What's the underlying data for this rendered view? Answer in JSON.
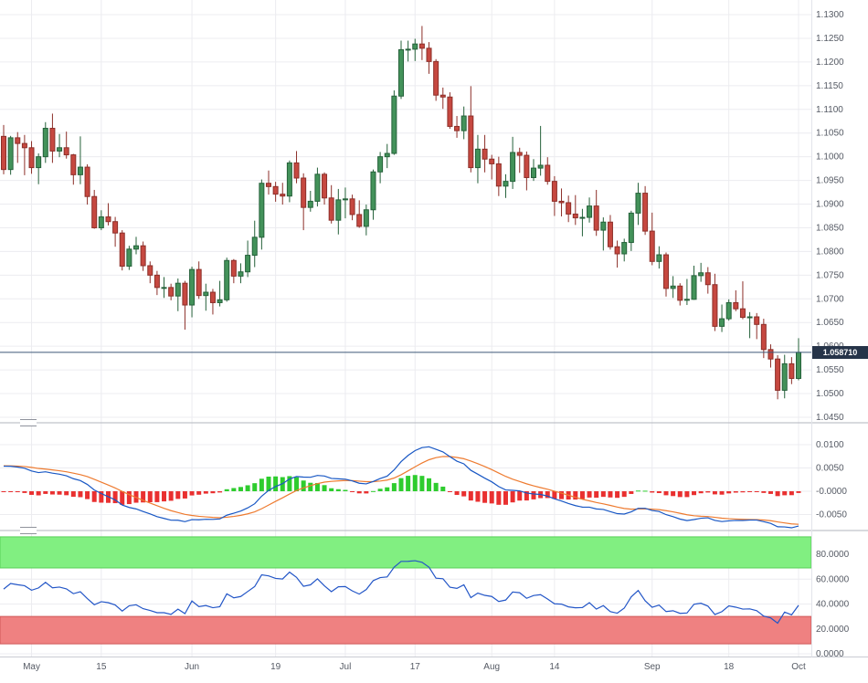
{
  "price_axis": {
    "last_price_label": "1.058710",
    "badge_color": "#263449",
    "line_color": "#3d5878"
  },
  "time_axis": {
    "ticks": [
      {
        "label": "May",
        "index": 4
      },
      {
        "label": "15",
        "index": 14
      },
      {
        "label": "Jun",
        "index": 27
      },
      {
        "label": "19",
        "index": 39
      },
      {
        "label": "Jul",
        "index": 49
      },
      {
        "label": "17",
        "index": 59
      },
      {
        "label": "Aug",
        "index": 70
      },
      {
        "label": "14",
        "index": 79
      },
      {
        "label": "Sep",
        "index": 93
      },
      {
        "label": "18",
        "index": 104
      },
      {
        "label": "Oct",
        "index": 114
      }
    ]
  },
  "chart_data": [
    {
      "type": "candlestick",
      "name": "price",
      "ylim": [
        1.045,
        1.13
      ],
      "last_price": 1.05871,
      "last_price_label": "1.058710",
      "up_color": "#43925a",
      "up_border": "#25613a",
      "down_color": "#c64840",
      "down_border": "#8c2f29",
      "y_ticks": [
        {
          "label": "1.1300",
          "value": 1.13
        },
        {
          "label": "1.1250",
          "value": 1.125
        },
        {
          "label": "1.1200",
          "value": 1.12
        },
        {
          "label": "1.1150",
          "value": 1.115
        },
        {
          "label": "1.1100",
          "value": 1.11
        },
        {
          "label": "1.1050",
          "value": 1.105
        },
        {
          "label": "1.1000",
          "value": 1.1
        },
        {
          "label": "1.0950",
          "value": 1.095
        },
        {
          "label": "1.0900",
          "value": 1.09
        },
        {
          "label": "1.0850",
          "value": 1.085
        },
        {
          "label": "1.0800",
          "value": 1.08
        },
        {
          "label": "1.0750",
          "value": 1.075
        },
        {
          "label": "1.0700",
          "value": 1.07
        },
        {
          "label": "1.0650",
          "value": 1.065
        },
        {
          "label": "1.0600",
          "value": 1.06
        },
        {
          "label": "1.0550",
          "value": 1.055
        },
        {
          "label": "1.0500",
          "value": 1.05
        },
        {
          "label": "1.0450",
          "value": 1.045
        }
      ],
      "ohlc": [
        [
          1.1043,
          1.1067,
          1.0963,
          1.0973
        ],
        [
          1.0973,
          1.1044,
          1.0962,
          1.104
        ],
        [
          1.104,
          1.1052,
          1.0987,
          1.1028
        ],
        [
          1.1028,
          1.1046,
          1.0961,
          1.1019
        ],
        [
          1.1019,
          1.1033,
          1.0964,
          1.0977
        ],
        [
          1.0977,
          1.1007,
          1.0942,
          1.1
        ],
        [
          1.1,
          1.1073,
          1.0987,
          1.106
        ],
        [
          1.106,
          1.1091,
          1.0987,
          1.1012
        ],
        [
          1.1012,
          1.1048,
          1.0999,
          1.1019
        ],
        [
          1.1019,
          1.1053,
          1.0996,
          1.1004
        ],
        [
          1.1004,
          1.1006,
          1.0941,
          1.0962
        ],
        [
          1.0962,
          1.1043,
          1.0942,
          1.0978
        ],
        [
          1.0978,
          1.0984,
          1.0899,
          1.0916
        ],
        [
          1.0916,
          1.093,
          1.0848,
          1.085
        ],
        [
          1.085,
          1.0887,
          1.0845,
          1.0873
        ],
        [
          1.0873,
          1.0902,
          1.0855,
          1.0863
        ],
        [
          1.0863,
          1.0873,
          1.081,
          1.0839
        ],
        [
          1.0839,
          1.0845,
          1.076,
          1.0769
        ],
        [
          1.0769,
          1.0812,
          1.0761,
          1.0805
        ],
        [
          1.0805,
          1.0831,
          1.0794,
          1.0812
        ],
        [
          1.0812,
          1.0821,
          1.0759,
          1.077
        ],
        [
          1.077,
          1.0779,
          1.0733,
          1.075
        ],
        [
          1.075,
          1.0759,
          1.0708,
          1.0724
        ],
        [
          1.0724,
          1.0746,
          1.0702,
          1.0724
        ],
        [
          1.0724,
          1.0732,
          1.0697,
          1.0706
        ],
        [
          1.0706,
          1.0743,
          1.0674,
          1.0733
        ],
        [
          1.0733,
          1.0738,
          1.0635,
          1.0687
        ],
        [
          1.0687,
          1.0768,
          1.0661,
          1.0762
        ],
        [
          1.0762,
          1.0779,
          1.07,
          1.0707
        ],
        [
          1.0707,
          1.0732,
          1.0675,
          1.0714
        ],
        [
          1.0714,
          1.0721,
          1.0667,
          1.0692
        ],
        [
          1.0692,
          1.0738,
          1.0684,
          1.0698
        ],
        [
          1.0698,
          1.0787,
          1.0694,
          1.0781
        ],
        [
          1.0781,
          1.0784,
          1.0733,
          1.0748
        ],
        [
          1.0748,
          1.0775,
          1.0733,
          1.0757
        ],
        [
          1.0757,
          1.0823,
          1.0746,
          1.0792
        ],
        [
          1.0792,
          1.0865,
          1.0767,
          1.083
        ],
        [
          1.083,
          1.0952,
          1.0804,
          1.0944
        ],
        [
          1.0944,
          1.0971,
          1.092,
          1.0937
        ],
        [
          1.0937,
          1.0947,
          1.0905,
          1.0921
        ],
        [
          1.0921,
          1.0945,
          1.0899,
          1.0917
        ],
        [
          1.0917,
          1.0992,
          1.0904,
          1.0987
        ],
        [
          1.0987,
          1.1012,
          1.0944,
          1.0955
        ],
        [
          1.0955,
          1.0965,
          1.0845,
          1.0893
        ],
        [
          1.0893,
          1.0928,
          1.0884,
          1.0906
        ],
        [
          1.0906,
          1.0977,
          1.0895,
          1.0963
        ],
        [
          1.0963,
          1.0967,
          1.0899,
          1.0913
        ],
        [
          1.0913,
          1.094,
          1.0859,
          1.0866
        ],
        [
          1.0866,
          1.0932,
          1.0836,
          1.0909
        ],
        [
          1.0909,
          1.0935,
          1.087,
          1.0911
        ],
        [
          1.0911,
          1.092,
          1.0866,
          1.0878
        ],
        [
          1.0878,
          1.0908,
          1.085,
          1.0853
        ],
        [
          1.0853,
          1.0899,
          1.0834,
          1.0888
        ],
        [
          1.0888,
          1.0973,
          1.0867,
          1.0968
        ],
        [
          1.0968,
          1.101,
          1.0944,
          1.1
        ],
        [
          1.1,
          1.1027,
          1.0976,
          1.1007
        ],
        [
          1.1007,
          1.114,
          1.1004,
          1.1128
        ],
        [
          1.1128,
          1.1245,
          1.1122,
          1.1226
        ],
        [
          1.1226,
          1.1245,
          1.1201,
          1.1227
        ],
        [
          1.1227,
          1.1249,
          1.1202,
          1.1238
        ],
        [
          1.1238,
          1.1276,
          1.1204,
          1.1229
        ],
        [
          1.1229,
          1.1242,
          1.1175,
          1.1201
        ],
        [
          1.1201,
          1.1206,
          1.1118,
          1.113
        ],
        [
          1.113,
          1.1146,
          1.1101,
          1.1126
        ],
        [
          1.1126,
          1.1136,
          1.1059,
          1.1064
        ],
        [
          1.1064,
          1.1086,
          1.104,
          1.1055
        ],
        [
          1.1055,
          1.1106,
          1.1037,
          1.1086
        ],
        [
          1.1086,
          1.1149,
          1.0967,
          1.0977
        ],
        [
          1.0977,
          1.1046,
          1.0944,
          1.1016
        ],
        [
          1.1016,
          1.1046,
          1.0967,
          1.0995
        ],
        [
          1.0995,
          1.1004,
          1.0952,
          1.0985
        ],
        [
          1.0985,
          1.1,
          1.0917,
          1.0938
        ],
        [
          1.0938,
          1.0963,
          1.0913,
          1.0948
        ],
        [
          1.0948,
          1.1042,
          1.0932,
          1.1009
        ],
        [
          1.1009,
          1.1019,
          1.0966,
          1.1003
        ],
        [
          1.1003,
          1.1011,
          1.0929,
          1.0956
        ],
        [
          1.0956,
          1.0995,
          1.0949,
          1.0976
        ],
        [
          1.0976,
          1.1065,
          1.096,
          1.0982
        ],
        [
          1.0982,
          1.0999,
          1.0941,
          1.0948
        ],
        [
          1.0948,
          1.0959,
          1.0875,
          1.0906
        ],
        [
          1.0906,
          1.0933,
          1.0874,
          1.0903
        ],
        [
          1.0903,
          1.0918,
          1.0862,
          1.0879
        ],
        [
          1.0879,
          1.0919,
          1.0856,
          1.0871
        ],
        [
          1.0871,
          1.089,
          1.0832,
          1.0872
        ],
        [
          1.0872,
          1.0914,
          1.0861,
          1.0896
        ],
        [
          1.0896,
          1.093,
          1.0833,
          1.0845
        ],
        [
          1.0845,
          1.0872,
          1.0802,
          1.0862
        ],
        [
          1.0862,
          1.0877,
          1.0804,
          1.081
        ],
        [
          1.081,
          1.0823,
          1.0766,
          1.0795
        ],
        [
          1.0795,
          1.0827,
          1.0779,
          1.0819
        ],
        [
          1.0819,
          1.0886,
          1.0801,
          1.0881
        ],
        [
          1.0881,
          1.0945,
          1.0856,
          1.0923
        ],
        [
          1.0923,
          1.0938,
          1.0835,
          1.0843
        ],
        [
          1.0843,
          1.0882,
          1.0771,
          1.0779
        ],
        [
          1.0779,
          1.0811,
          1.0764,
          1.0793
        ],
        [
          1.0793,
          1.0798,
          1.0705,
          1.0722
        ],
        [
          1.0722,
          1.0748,
          1.0702,
          1.0727
        ],
        [
          1.0727,
          1.0733,
          1.0686,
          1.0697
        ],
        [
          1.0697,
          1.0742,
          1.0687,
          1.0699
        ],
        [
          1.0699,
          1.077,
          1.0698,
          1.0749
        ],
        [
          1.0749,
          1.0776,
          1.0736,
          1.0755
        ],
        [
          1.0755,
          1.0767,
          1.0711,
          1.073
        ],
        [
          1.073,
          1.0753,
          1.0632,
          1.0642
        ],
        [
          1.0642,
          1.0688,
          1.063,
          1.0658
        ],
        [
          1.0658,
          1.0699,
          1.0654,
          1.0692
        ],
        [
          1.0692,
          1.0718,
          1.0674,
          1.0679
        ],
        [
          1.0679,
          1.0737,
          1.0657,
          1.0661
        ],
        [
          1.0661,
          1.0672,
          1.0617,
          1.0662
        ],
        [
          1.0662,
          1.067,
          1.0615,
          1.0646
        ],
        [
          1.0646,
          1.0658,
          1.0575,
          1.0593
        ],
        [
          1.0593,
          1.0604,
          1.0555,
          1.0573
        ],
        [
          1.0573,
          1.0581,
          1.0488,
          1.0507
        ],
        [
          1.0507,
          1.0582,
          1.049,
          1.0563
        ],
        [
          1.0563,
          1.0577,
          1.052,
          1.0532
        ],
        [
          1.0532,
          1.0617,
          1.0528,
          1.05871
        ]
      ]
    },
    {
      "type": "bar",
      "name": "macd",
      "derived_from": "price.closes",
      "params": {
        "fast": 12,
        "slow": 26,
        "signal": 9,
        "seed_ema_fast": 1.0995,
        "seed_ema_slow": 1.0935,
        "seed_signal": 0.0055
      },
      "macd_color": "#1857c4",
      "signal_color": "#ee7b30",
      "hist_up_color": "#2ecc2e",
      "hist_down_color": "#e93030",
      "y_ticks": [
        {
          "label": "0.0100",
          "value": 0.01
        },
        {
          "label": "0.0050",
          "value": 0.005
        },
        {
          "label": "-0.0000",
          "value": 0
        },
        {
          "label": "-0.0050",
          "value": -0.005
        }
      ]
    },
    {
      "type": "line",
      "name": "oscillator",
      "derived_from": "price.closes",
      "params": {
        "period": 14,
        "seed_avg_gain": 0.0026,
        "seed_avg_loss": 0.0024
      },
      "line_color": "#2356c7",
      "bands": {
        "upper": {
          "from": 69,
          "to": 94,
          "color": "#81ef81",
          "border": "#58d058"
        },
        "lower": {
          "from": 8,
          "to": 30,
          "color": "#ef8181",
          "border": "#d05858"
        }
      },
      "y_ticks": [
        {
          "label": "80.0000",
          "value": 80
        },
        {
          "label": "60.0000",
          "value": 60
        },
        {
          "label": "40.0000",
          "value": 40
        },
        {
          "label": "20.0000",
          "value": 20
        },
        {
          "label": "0.0000",
          "value": 0
        }
      ]
    }
  ]
}
